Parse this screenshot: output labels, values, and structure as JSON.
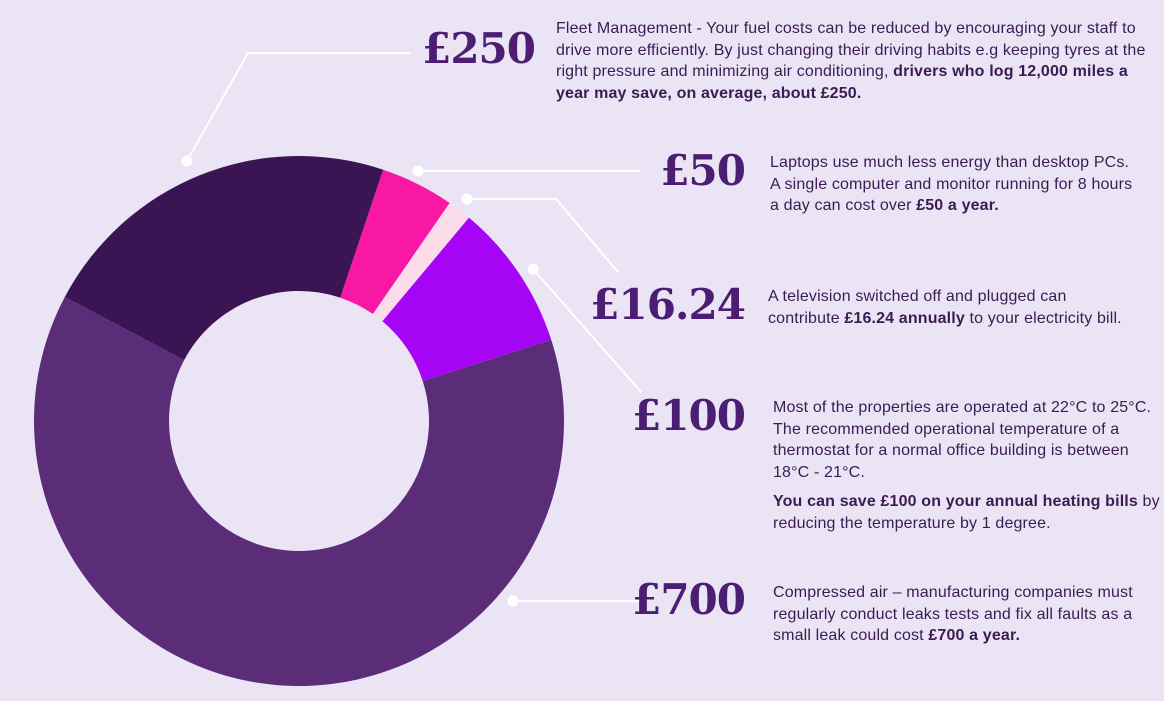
{
  "background_color": "#EBE4F5",
  "text_color": "#3A1C52",
  "price_color": "#4B1E73",
  "connector_color": "#FFFFFF",
  "chart_data": {
    "type": "pie",
    "subtype": "donut",
    "title": "",
    "legend_position": "none",
    "total": 1116.24,
    "segments": [
      {
        "label": "£250",
        "value": 250,
        "color": "#3A1453"
      },
      {
        "label": "£50",
        "value": 50,
        "color": "#F818A3"
      },
      {
        "label": "£16.24",
        "value": 16.24,
        "color": "#FCDCEB"
      },
      {
        "label": "£100",
        "value": 100,
        "color": "#A605F5"
      },
      {
        "label": "£700",
        "value": 700,
        "color": "#5B2C78"
      }
    ]
  },
  "sections": [
    {
      "price": "£250",
      "desc": [
        [
          {
            "text": "Fleet Management - Your fuel costs can be reduced by encouraging your staff to"
          }
        ],
        [
          {
            "text": "drive more efficiently. By just changing their driving habits e.g keeping tyres at the"
          }
        ],
        [
          {
            "text": "right pressure and minimizing air conditioning, "
          },
          {
            "text": "drivers who log 12,000 miles a",
            "bold": true
          }
        ],
        [
          {
            "text": "year may save, on average, about £250.",
            "bold": true
          }
        ]
      ]
    },
    {
      "price": "£50",
      "desc": [
        [
          {
            "text": "Laptops use much less energy than desktop PCs."
          }
        ],
        [
          {
            "text": "A single computer and monitor running for 8 hours"
          }
        ],
        [
          {
            "text": "a day can cost over "
          },
          {
            "text": "£50 a year.",
            "bold": true
          }
        ]
      ]
    },
    {
      "price": "£16.24",
      "desc": [
        [
          {
            "text": "A television switched off and plugged can"
          }
        ],
        [
          {
            "text": "contribute "
          },
          {
            "text": "£16.24 annually",
            "bold": true
          },
          {
            "text": " to your electricity bill."
          }
        ]
      ]
    },
    {
      "price": "£100",
      "desc": [
        [
          {
            "text": "Most of the properties are operated at 22°C to 25°C."
          }
        ],
        [
          {
            "text": "The recommended operational temperature of a"
          }
        ],
        [
          {
            "text": "thermostat for a normal office building is between"
          }
        ],
        [
          {
            "text": "18°C - 21°C."
          }
        ]
      ],
      "desc2": [
        [
          {
            "text": "You can save £100 on your annual heating bills",
            "bold": true
          },
          {
            "text": " by"
          }
        ],
        [
          {
            "text": "reducing the temperature by 1 degree."
          }
        ]
      ]
    },
    {
      "price": "£700",
      "desc": [
        [
          {
            "text": "Compressed air – manufacturing companies must"
          }
        ],
        [
          {
            "text": "regularly conduct leaks tests and fix all faults as a"
          }
        ],
        [
          {
            "text": "small leak could cost "
          },
          {
            "text": "£700 a year.",
            "bold": true
          }
        ]
      ]
    }
  ]
}
